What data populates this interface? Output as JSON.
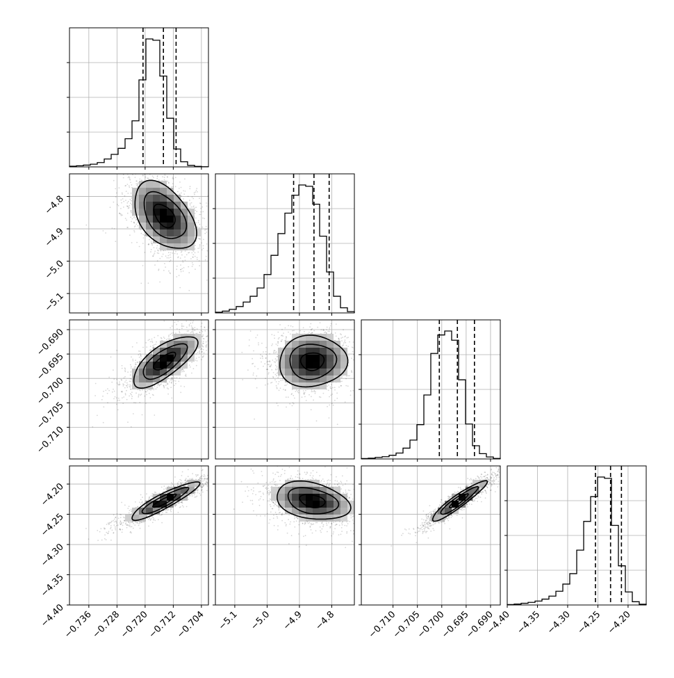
{
  "chart_data": {
    "type": "corner",
    "parameters": [
      {
        "range": [
          -0.7415,
          -0.702
        ],
        "ticks": [
          -0.736,
          -0.728,
          -0.72,
          -0.712,
          -0.704
        ],
        "tick_labels": [
          "−0.736",
          "−0.728",
          "−0.720",
          "−0.712",
          "−0.704"
        ],
        "quantiles": [
          -0.7206,
          -0.7148,
          -0.7112
        ],
        "peak": -0.715,
        "hist": [
          0.5,
          0.9,
          1.4,
          2.1,
          3.4,
          6.2,
          9.8,
          14.5,
          22.0,
          36.0,
          68.0,
          100.0,
          99.0,
          71.0,
          38.0,
          14.0,
          4.0,
          1.2,
          0.4,
          0.1
        ]
      },
      {
        "range": [
          -5.16,
          -4.73
        ],
        "ticks": [
          -5.1,
          -5.0,
          -4.9,
          -4.8
        ],
        "tick_labels": [
          "−5.1",
          "−5.0",
          "−4.9",
          "−4.8"
        ],
        "quantiles": [
          -4.918,
          -4.855,
          -4.808
        ],
        "peak": -4.85,
        "hist": [
          0.5,
          1.4,
          2.8,
          5.0,
          8.5,
          13.0,
          19.5,
          30.0,
          45.0,
          62.0,
          78.0,
          92.0,
          100.0,
          99.0,
          85.0,
          60.0,
          32.0,
          13.0,
          4.0,
          1.0
        ]
      },
      {
        "range": [
          -0.7165,
          -0.688
        ],
        "ticks": [
          -0.71,
          -0.705,
          -0.7,
          -0.695,
          -0.69
        ],
        "tick_labels": [
          "−0.710",
          "−0.705",
          "−0.700",
          "−0.695",
          "−0.690"
        ],
        "quantiles": [
          -0.7005,
          -0.6968,
          -0.6933
        ],
        "peak": -0.6965,
        "hist": [
          0.3,
          0.6,
          1.2,
          1.7,
          2.8,
          4.5,
          8.2,
          14.3,
          26.0,
          48.5,
          80.0,
          94.0,
          97.0,
          90.0,
          60.0,
          26.5,
          10.0,
          4.0,
          1.5,
          0.4
        ]
      },
      {
        "range": [
          -4.4,
          -4.17
        ],
        "ticks": [
          -4.4,
          -4.35,
          -4.3,
          -4.25,
          -4.2
        ],
        "tick_labels": [
          "−4.40",
          "−4.35",
          "−4.30",
          "−4.25",
          "−4.20"
        ],
        "quantiles": [
          -4.254,
          -4.229,
          -4.211
        ],
        "peak": -4.228,
        "hist": [
          0.3,
          0.7,
          1.3,
          2.0,
          3.0,
          4.5,
          6.8,
          10.5,
          16.0,
          24.0,
          42.0,
          64.0,
          83.0,
          98.0,
          97.0,
          61.0,
          30.0,
          10.0,
          2.5,
          0.6
        ]
      }
    ],
    "correlations": [
      {
        "pair": [
          0,
          1
        ],
        "mean": [
          -0.7145,
          -4.86
        ],
        "sd": [
          0.005,
          0.06
        ],
        "rho": -0.45
      },
      {
        "pair": [
          0,
          2
        ],
        "mean": [
          -0.7145,
          -0.6965
        ],
        "sd": [
          0.0052,
          0.003
        ],
        "rho": 0.72
      },
      {
        "pair": [
          1,
          2
        ],
        "mean": [
          -4.86,
          -0.6965
        ],
        "sd": [
          0.06,
          0.003
        ],
        "rho": 0.05
      },
      {
        "pair": [
          0,
          3
        ],
        "mean": [
          -0.7145,
          -4.228
        ],
        "sd": [
          0.0055,
          0.018
        ],
        "rho": 0.9
      },
      {
        "pair": [
          1,
          3
        ],
        "mean": [
          -4.86,
          -4.228
        ],
        "sd": [
          0.065,
          0.018
        ],
        "rho": -0.3
      },
      {
        "pair": [
          2,
          3
        ],
        "mean": [
          -0.6965,
          -4.228
        ],
        "sd": [
          0.0032,
          0.019
        ],
        "rho": 0.93
      }
    ]
  }
}
